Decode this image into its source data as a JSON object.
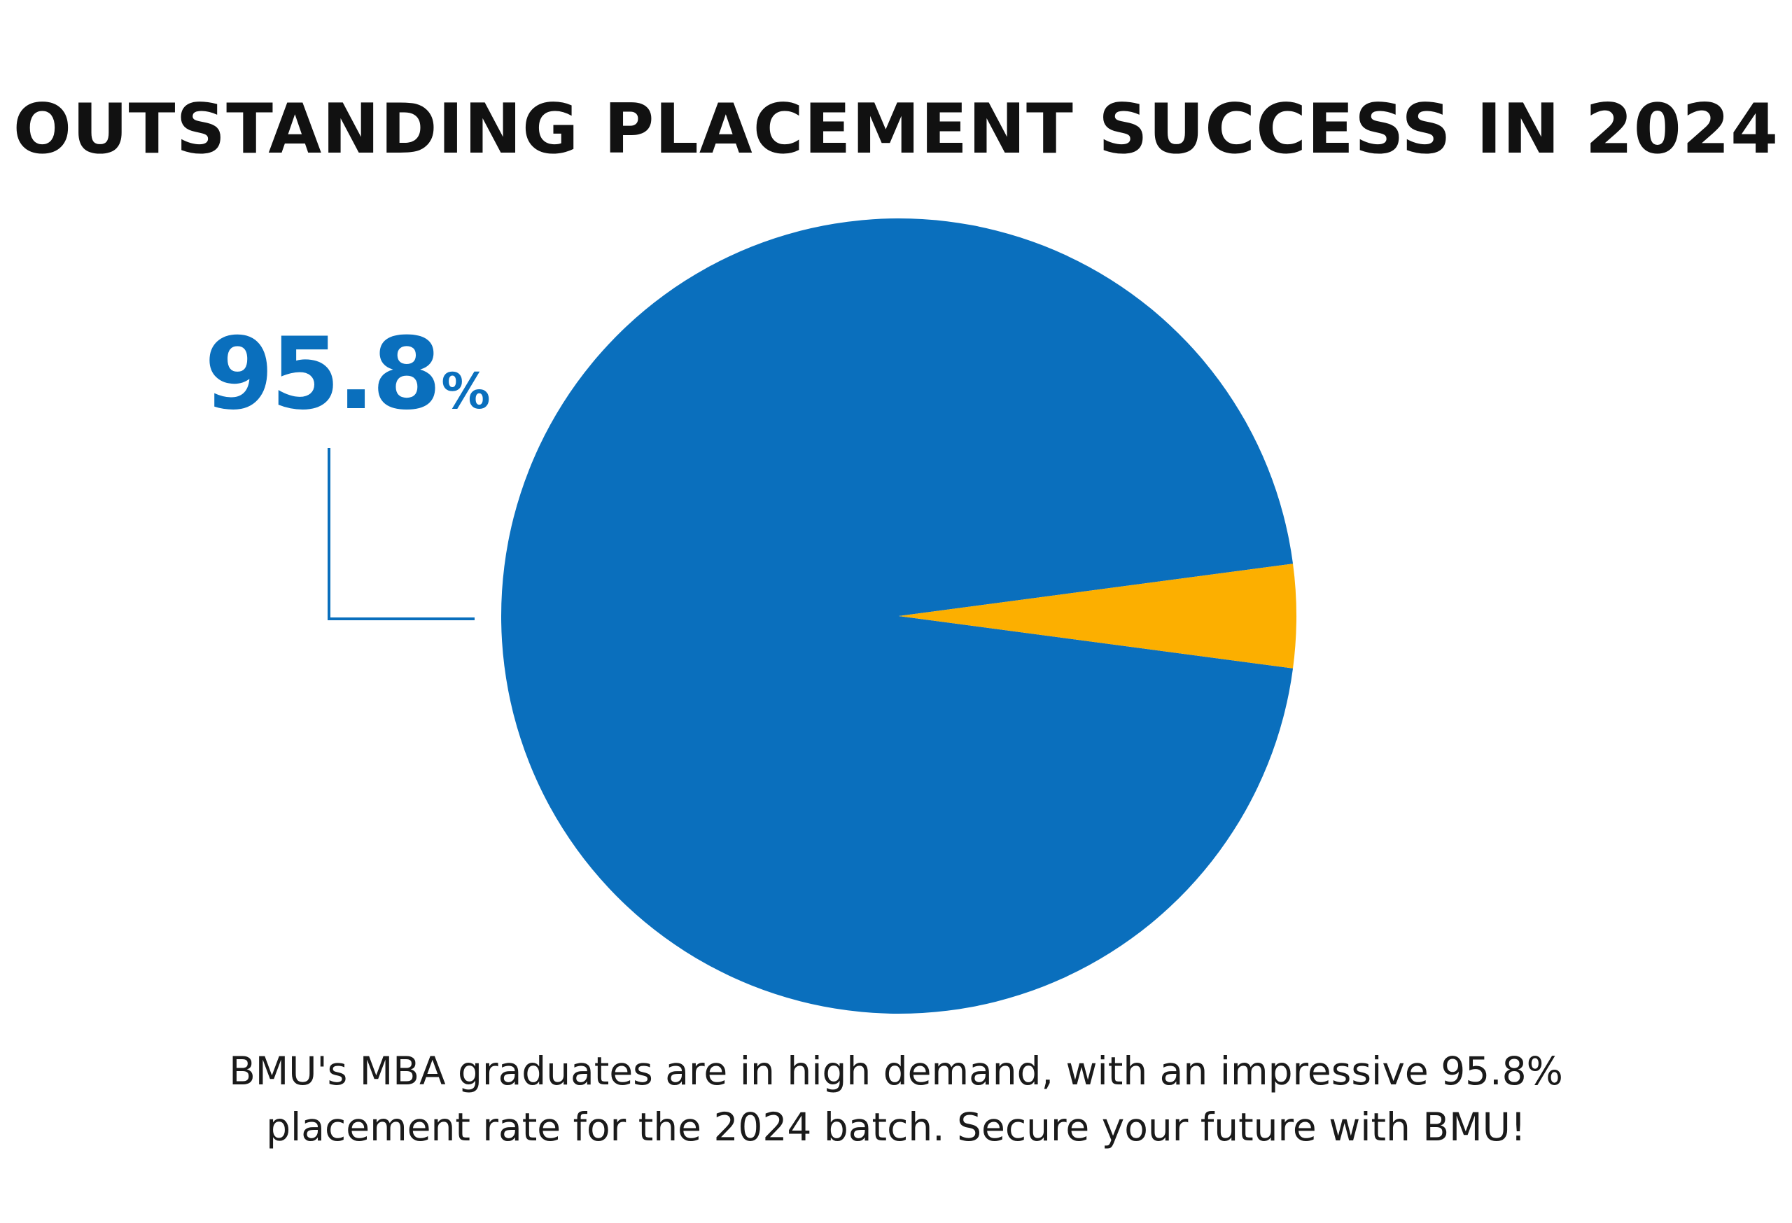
{
  "title": "OUTSTANDING PLACEMENT SUCCESS IN 2024",
  "callout": {
    "number": "95.8",
    "unit": "%"
  },
  "caption": {
    "line1": "BMU's MBA graduates are in high demand, with an impressive 95.8%",
    "line2": "placement rate for the 2024 batch. Secure your future with BMU!"
  },
  "colors": {
    "primary": "#0A6FBD",
    "accent": "#FCAF00",
    "text": "#111111"
  },
  "chart_data": {
    "type": "pie",
    "title": "OUTSTANDING PLACEMENT SUCCESS IN 2024",
    "slices": [
      {
        "value": 95.8,
        "color": "#0A6FBD"
      },
      {
        "value": 4.2,
        "color": "#FCAF00"
      }
    ],
    "data_labels": [
      "95.8%"
    ],
    "legend": "none"
  }
}
